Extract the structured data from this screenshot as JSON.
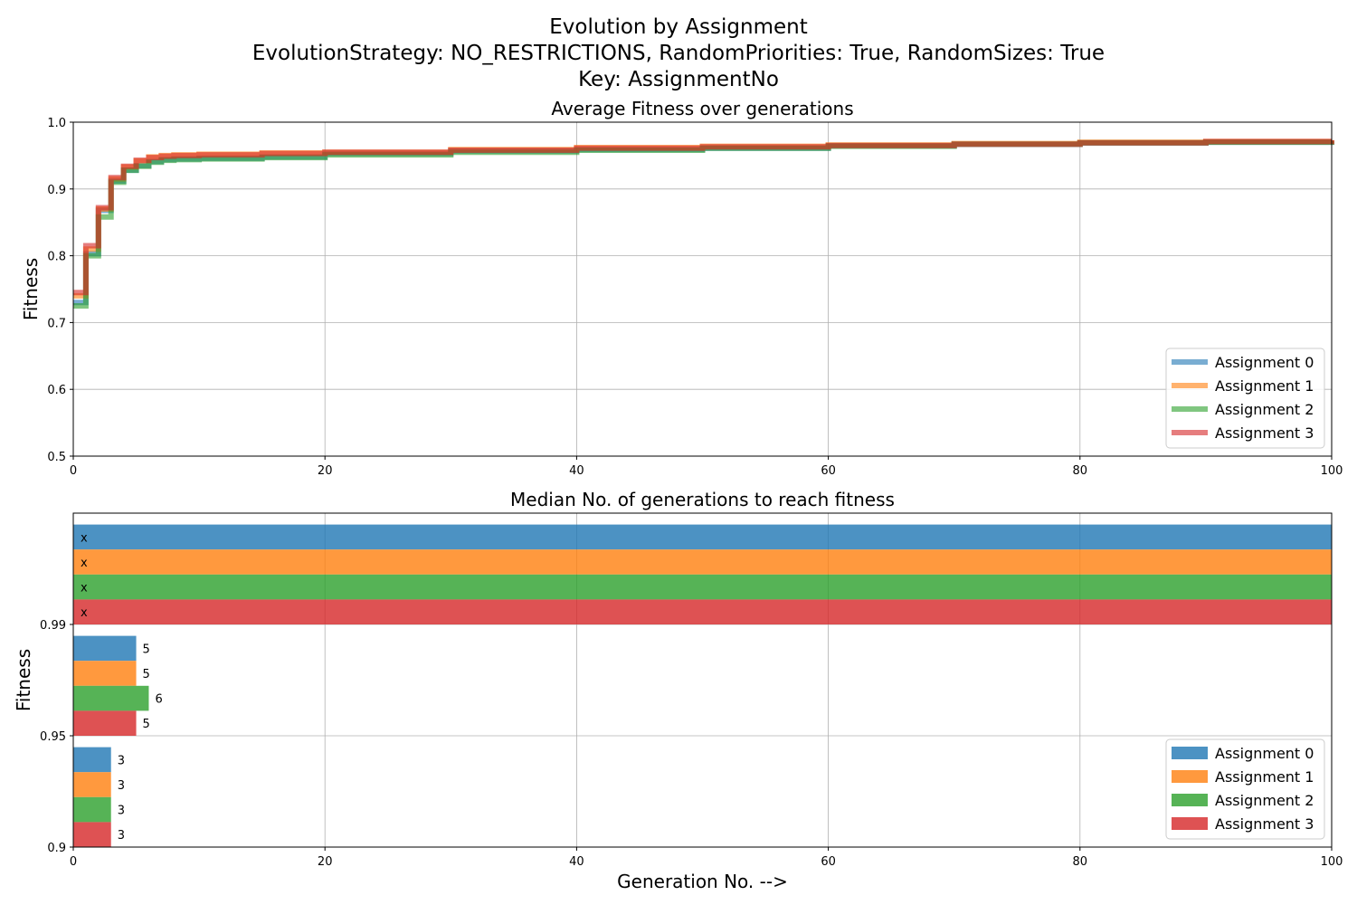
{
  "figure": {
    "title_lines": [
      "Evolution by Assignment",
      "EvolutionStrategy: NO_RESTRICTIONS, RandomPriorities: True, RandomSizes: True",
      "Key: AssignmentNo"
    ]
  },
  "colors": {
    "Assignment 0": "#1f77b4",
    "Assignment 1": "#ff7f0e",
    "Assignment 2": "#2ca02c",
    "Assignment 3": "#d62728"
  },
  "chart_data": [
    {
      "type": "line",
      "title": "Average Fitness over generations",
      "xlabel": "",
      "ylabel": "Fitness",
      "xlim": [
        0,
        100
      ],
      "ylim": [
        0.5,
        1.0
      ],
      "xticks": [
        "0",
        "20",
        "40",
        "60",
        "80",
        "100"
      ],
      "yticks": [
        "0.5",
        "0.6",
        "0.7",
        "0.8",
        "0.9",
        "1.0"
      ],
      "grid": true,
      "legend_position": "lower-right",
      "step": true,
      "x": [
        0,
        1,
        2,
        3,
        4,
        5,
        6,
        7,
        8,
        10,
        15,
        20,
        30,
        40,
        50,
        60,
        70,
        80,
        90,
        100
      ],
      "series": [
        {
          "name": "Assignment 0",
          "values": [
            0.73,
            0.803,
            0.868,
            0.912,
            0.928,
            0.935,
            0.941,
            0.944,
            0.945,
            0.946,
            0.948,
            0.953,
            0.957,
            0.959,
            0.961,
            0.965,
            0.967,
            0.969,
            0.97,
            0.972
          ]
        },
        {
          "name": "Assignment 1",
          "values": [
            0.74,
            0.81,
            0.87,
            0.915,
            0.933,
            0.942,
            0.948,
            0.95,
            0.951,
            0.952,
            0.954,
            0.955,
            0.959,
            0.962,
            0.964,
            0.966,
            0.968,
            0.97,
            0.971,
            0.973
          ]
        },
        {
          "name": "Assignment 2",
          "values": [
            0.725,
            0.8,
            0.858,
            0.91,
            0.928,
            0.934,
            0.94,
            0.943,
            0.944,
            0.945,
            0.947,
            0.951,
            0.955,
            0.958,
            0.961,
            0.964,
            0.967,
            0.969,
            0.97,
            0.972
          ]
        },
        {
          "name": "Assignment 3",
          "values": [
            0.745,
            0.815,
            0.872,
            0.917,
            0.934,
            0.943,
            0.947,
            0.949,
            0.95,
            0.951,
            0.953,
            0.955,
            0.958,
            0.961,
            0.963,
            0.965,
            0.967,
            0.969,
            0.971,
            0.973
          ]
        }
      ]
    },
    {
      "type": "bar",
      "orientation": "horizontal",
      "title": "Median No. of generations to reach fitness",
      "xlabel": "Generation No. -->",
      "ylabel": "Fitness",
      "xlim": [
        0,
        100
      ],
      "xticks": [
        "0",
        "20",
        "40",
        "60",
        "80",
        "100"
      ],
      "categories": [
        "0.9",
        "0.95",
        "0.99"
      ],
      "grid": true,
      "legend_position": "lower-right",
      "series": [
        {
          "name": "Assignment 0",
          "values": [
            3,
            5,
            100
          ],
          "labels": [
            "3",
            "5",
            "x"
          ]
        },
        {
          "name": "Assignment 1",
          "values": [
            3,
            5,
            100
          ],
          "labels": [
            "3",
            "5",
            "x"
          ]
        },
        {
          "name": "Assignment 2",
          "values": [
            3,
            6,
            100
          ],
          "labels": [
            "3",
            "6",
            "x"
          ]
        },
        {
          "name": "Assignment 3",
          "values": [
            3,
            5,
            100
          ],
          "labels": [
            "3",
            "5",
            "x"
          ]
        }
      ]
    }
  ]
}
